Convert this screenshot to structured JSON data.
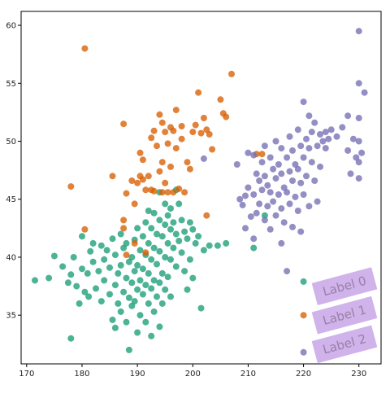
{
  "chart_data": {
    "type": "scatter",
    "xlim": [
      169,
      234
    ],
    "ylim": [
      30.8,
      61.2
    ],
    "xticks": [
      170,
      180,
      190,
      200,
      210,
      220,
      230
    ],
    "yticks": [
      35,
      40,
      45,
      50,
      55,
      60
    ],
    "grid": false,
    "legend_placement": "bottom-right",
    "legend": {
      "entries": [
        "Label 0",
        "Label 1",
        "Label 2"
      ],
      "box_color": "#c7a6e6"
    },
    "series": [
      {
        "color": "#1b9e77",
        "points": [
          [
            171.5,
            38.0
          ],
          [
            174.0,
            38.2
          ],
          [
            175.0,
            40.1
          ],
          [
            176.5,
            39.2
          ],
          [
            177.5,
            37.8
          ],
          [
            178.0,
            38.5
          ],
          [
            178.0,
            33.0
          ],
          [
            178.5,
            40.0
          ],
          [
            179.0,
            37.5
          ],
          [
            179.5,
            36.0
          ],
          [
            180.0,
            41.8
          ],
          [
            180.0,
            39.0
          ],
          [
            180.5,
            37.0
          ],
          [
            181.0,
            38.6
          ],
          [
            181.2,
            36.6
          ],
          [
            181.5,
            40.5
          ],
          [
            182.0,
            41.2
          ],
          [
            182.0,
            39.6
          ],
          [
            182.5,
            37.3
          ],
          [
            183.0,
            38.8
          ],
          [
            183.5,
            41.0
          ],
          [
            183.5,
            36.2
          ],
          [
            184.0,
            39.8
          ],
          [
            184.0,
            38.0
          ],
          [
            184.5,
            40.6
          ],
          [
            185.0,
            36.8
          ],
          [
            185.0,
            39.1
          ],
          [
            185.5,
            41.6
          ],
          [
            185.5,
            34.6
          ],
          [
            186.0,
            40.2
          ],
          [
            186.0,
            37.6
          ],
          [
            186.0,
            33.9
          ],
          [
            186.5,
            38.6
          ],
          [
            186.5,
            36.0
          ],
          [
            187.0,
            42.0
          ],
          [
            187.0,
            39.3
          ],
          [
            187.0,
            35.3
          ],
          [
            187.5,
            40.8
          ],
          [
            187.5,
            37.0
          ],
          [
            188.0,
            38.2
          ],
          [
            188.0,
            41.2
          ],
          [
            188.0,
            34.4
          ],
          [
            188.5,
            39.6
          ],
          [
            188.5,
            36.5
          ],
          [
            188.5,
            32.0
          ],
          [
            189.0,
            40.0
          ],
          [
            189.0,
            37.8
          ],
          [
            189.0,
            35.8
          ],
          [
            189.5,
            41.5
          ],
          [
            189.5,
            38.8
          ],
          [
            189.5,
            36.2
          ],
          [
            190.0,
            39.3
          ],
          [
            190.0,
            37.2
          ],
          [
            190.0,
            33.5
          ],
          [
            190.0,
            42.5
          ],
          [
            190.5,
            40.6
          ],
          [
            190.5,
            38.0
          ],
          [
            190.5,
            35.0
          ],
          [
            191.0,
            41.8
          ],
          [
            191.0,
            39.0
          ],
          [
            191.0,
            36.8
          ],
          [
            191.5,
            43.0
          ],
          [
            191.5,
            40.2
          ],
          [
            191.5,
            37.6
          ],
          [
            191.5,
            34.4
          ],
          [
            192.0,
            44.0
          ],
          [
            192.0,
            41.2
          ],
          [
            192.0,
            38.6
          ],
          [
            192.0,
            36.0
          ],
          [
            192.5,
            42.5
          ],
          [
            192.5,
            39.8
          ],
          [
            192.5,
            37.3
          ],
          [
            192.5,
            33.2
          ],
          [
            193.0,
            43.8
          ],
          [
            193.0,
            40.8
          ],
          [
            193.0,
            38.0
          ],
          [
            193.0,
            35.3
          ],
          [
            193.5,
            42.0
          ],
          [
            193.5,
            39.4
          ],
          [
            193.5,
            36.6
          ],
          [
            194.0,
            45.6
          ],
          [
            194.0,
            43.2
          ],
          [
            194.0,
            40.5
          ],
          [
            194.0,
            37.8
          ],
          [
            194.0,
            34.0
          ],
          [
            194.5,
            41.8
          ],
          [
            194.5,
            38.6
          ],
          [
            194.5,
            36.0
          ],
          [
            195.0,
            44.6
          ],
          [
            195.0,
            42.8
          ],
          [
            195.0,
            40.0
          ],
          [
            195.0,
            37.2
          ],
          [
            195.5,
            43.6
          ],
          [
            195.5,
            41.2
          ],
          [
            195.5,
            38.3
          ],
          [
            196.0,
            44.2
          ],
          [
            196.0,
            42.4
          ],
          [
            196.0,
            39.8
          ],
          [
            196.0,
            36.6
          ],
          [
            196.5,
            43.0
          ],
          [
            196.5,
            40.8
          ],
          [
            197.0,
            45.8
          ],
          [
            197.0,
            42.0
          ],
          [
            197.0,
            39.2
          ],
          [
            197.5,
            44.6
          ],
          [
            197.5,
            41.4
          ],
          [
            198.0,
            43.2
          ],
          [
            198.0,
            40.4
          ],
          [
            198.5,
            42.2
          ],
          [
            198.5,
            38.8
          ],
          [
            199.0,
            41.6
          ],
          [
            199.0,
            37.2
          ],
          [
            199.5,
            43.0
          ],
          [
            199.5,
            39.8
          ],
          [
            200.0,
            42.4
          ],
          [
            200.0,
            38.2
          ],
          [
            200.5,
            41.2
          ],
          [
            201.0,
            41.8
          ],
          [
            201.5,
            35.6
          ],
          [
            202.0,
            40.6
          ],
          [
            203.0,
            41.0
          ],
          [
            204.5,
            41.0
          ],
          [
            206.0,
            41.2
          ],
          [
            211.0,
            40.8
          ],
          [
            213.0,
            43.6
          ],
          [
            220.0,
            37.9
          ]
        ]
      },
      {
        "color": "#d95f02",
        "points": [
          [
            178.0,
            46.1
          ],
          [
            180.5,
            42.4
          ],
          [
            180.5,
            58.0
          ],
          [
            185.5,
            47.0
          ],
          [
            187.5,
            51.5
          ],
          [
            187.5,
            43.2
          ],
          [
            187.5,
            42.5
          ],
          [
            188.0,
            40.2
          ],
          [
            188.0,
            45.5
          ],
          [
            189.0,
            46.6
          ],
          [
            189.5,
            44.6
          ],
          [
            189.5,
            41.2
          ],
          [
            190.0,
            46.4
          ],
          [
            190.5,
            47.0
          ],
          [
            190.5,
            49.0
          ],
          [
            191.0,
            48.4
          ],
          [
            191.0,
            46.7
          ],
          [
            191.5,
            45.8
          ],
          [
            191.5,
            40.4
          ],
          [
            192.0,
            47.0
          ],
          [
            192.5,
            50.3
          ],
          [
            192.5,
            45.8
          ],
          [
            193.0,
            50.9
          ],
          [
            193.0,
            45.7
          ],
          [
            193.5,
            49.6
          ],
          [
            194.0,
            52.3
          ],
          [
            194.0,
            47.4
          ],
          [
            194.5,
            51.6
          ],
          [
            194.5,
            48.2
          ],
          [
            194.5,
            45.6
          ],
          [
            195.0,
            50.8
          ],
          [
            195.0,
            46.4
          ],
          [
            195.5,
            49.8
          ],
          [
            195.5,
            45.6
          ],
          [
            196.0,
            51.2
          ],
          [
            196.0,
            47.8
          ],
          [
            196.5,
            50.9
          ],
          [
            196.5,
            45.6
          ],
          [
            197.0,
            52.7
          ],
          [
            197.0,
            49.4
          ],
          [
            197.5,
            45.9
          ],
          [
            198.0,
            51.3
          ],
          [
            198.0,
            50.2
          ],
          [
            198.5,
            45.6
          ],
          [
            199.0,
            48.2
          ],
          [
            199.5,
            47.6
          ],
          [
            200.0,
            50.8
          ],
          [
            200.5,
            51.4
          ],
          [
            201.0,
            54.2
          ],
          [
            201.5,
            50.7
          ],
          [
            202.0,
            52.0
          ],
          [
            202.5,
            51.0
          ],
          [
            202.5,
            43.6
          ],
          [
            203.0,
            50.6
          ],
          [
            203.5,
            49.3
          ],
          [
            205.0,
            53.6
          ],
          [
            205.5,
            52.4
          ],
          [
            206.0,
            52.1
          ],
          [
            207.0,
            55.8
          ],
          [
            211.5,
            48.9
          ],
          [
            212.5,
            48.9
          ],
          [
            220.0,
            35.0
          ]
        ]
      },
      {
        "color": "#7570b3",
        "points": [
          [
            202.0,
            48.5
          ],
          [
            208.0,
            48.0
          ],
          [
            208.5,
            45.0
          ],
          [
            209.0,
            44.5
          ],
          [
            209.5,
            45.3
          ],
          [
            209.5,
            42.5
          ],
          [
            210.0,
            49.0
          ],
          [
            210.0,
            46.0
          ],
          [
            210.5,
            43.5
          ],
          [
            211.0,
            48.8
          ],
          [
            211.0,
            45.4
          ],
          [
            211.0,
            41.6
          ],
          [
            211.5,
            47.2
          ],
          [
            211.5,
            43.8
          ],
          [
            212.0,
            46.6
          ],
          [
            212.0,
            44.6
          ],
          [
            212.5,
            48.2
          ],
          [
            212.5,
            45.8
          ],
          [
            213.0,
            49.6
          ],
          [
            213.0,
            47.0
          ],
          [
            213.0,
            43.2
          ],
          [
            213.5,
            46.2
          ],
          [
            213.5,
            44.4
          ],
          [
            214.0,
            48.6
          ],
          [
            214.0,
            45.6
          ],
          [
            214.0,
            42.4
          ],
          [
            214.5,
            47.6
          ],
          [
            214.5,
            44.8
          ],
          [
            215.0,
            50.0
          ],
          [
            215.0,
            46.8
          ],
          [
            215.0,
            43.6
          ],
          [
            215.5,
            48.0
          ],
          [
            215.5,
            45.4
          ],
          [
            216.0,
            49.4
          ],
          [
            216.0,
            47.2
          ],
          [
            216.0,
            44.2
          ],
          [
            216.0,
            41.2
          ],
          [
            216.5,
            46.0
          ],
          [
            216.5,
            43.0
          ],
          [
            217.0,
            48.6
          ],
          [
            217.0,
            45.6
          ],
          [
            217.0,
            38.8
          ],
          [
            217.5,
            50.4
          ],
          [
            217.5,
            47.4
          ],
          [
            217.5,
            44.6
          ],
          [
            218.0,
            49.2
          ],
          [
            218.0,
            46.6
          ],
          [
            218.0,
            42.6
          ],
          [
            218.5,
            48.0
          ],
          [
            218.5,
            45.2
          ],
          [
            219.0,
            51.0
          ],
          [
            219.0,
            47.6
          ],
          [
            219.0,
            44.0
          ],
          [
            219.5,
            49.6
          ],
          [
            219.5,
            46.4
          ],
          [
            219.5,
            42.2
          ],
          [
            220.0,
            53.4
          ],
          [
            220.0,
            48.6
          ],
          [
            220.0,
            45.4
          ],
          [
            220.5,
            50.2
          ],
          [
            220.5,
            47.0
          ],
          [
            221.0,
            52.2
          ],
          [
            221.0,
            49.4
          ],
          [
            221.0,
            44.4
          ],
          [
            221.5,
            50.8
          ],
          [
            221.5,
            48.2
          ],
          [
            222.0,
            51.6
          ],
          [
            222.0,
            46.6
          ],
          [
            222.5,
            49.6
          ],
          [
            222.5,
            44.8
          ],
          [
            223.0,
            50.6
          ],
          [
            223.0,
            47.8
          ],
          [
            223.5,
            50.0
          ],
          [
            224.0,
            50.8
          ],
          [
            224.0,
            49.4
          ],
          [
            224.5,
            50.2
          ],
          [
            225.0,
            51.0
          ],
          [
            226.0,
            50.4
          ],
          [
            227.0,
            51.2
          ],
          [
            228.0,
            52.2
          ],
          [
            228.0,
            49.2
          ],
          [
            228.5,
            47.2
          ],
          [
            229.0,
            50.2
          ],
          [
            229.5,
            48.6
          ],
          [
            230.0,
            55.0
          ],
          [
            230.0,
            52.0
          ],
          [
            230.0,
            50.0
          ],
          [
            230.0,
            48.2
          ],
          [
            230.0,
            46.8
          ],
          [
            230.0,
            59.5
          ],
          [
            230.5,
            49.0
          ],
          [
            231.0,
            54.2
          ],
          [
            220.0,
            31.8
          ]
        ]
      }
    ]
  }
}
